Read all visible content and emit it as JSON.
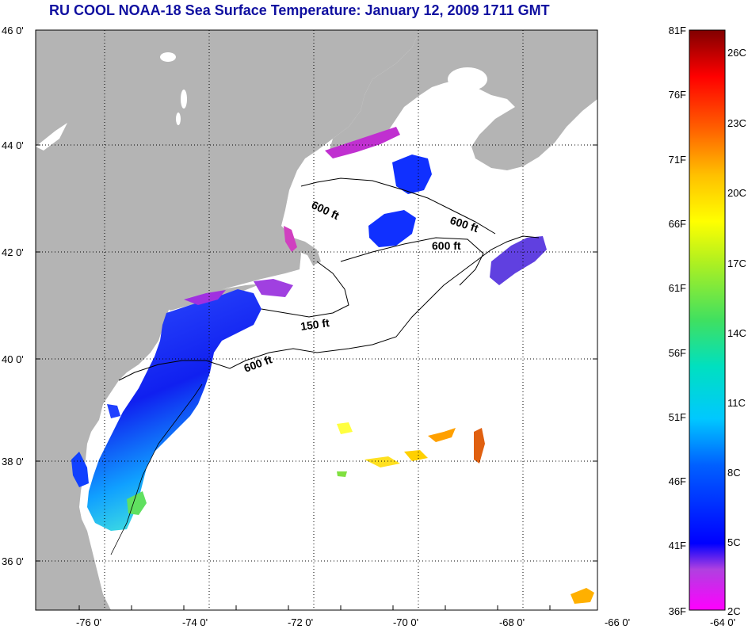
{
  "title": "RU COOL  NOAA-18  Sea Surface Temperature:  January 12, 2009 1711 GMT",
  "colors": {
    "land": "#b4b4b4",
    "water": "#ffffff",
    "frame": "#000000",
    "title": "#1010a0"
  },
  "map": {
    "lat_labels": [
      "46 0'",
      "44 0'",
      "42 0'",
      "40 0'",
      "38 0'",
      "36 0'"
    ],
    "lon_labels": [
      "-76 0'",
      "-74 0'",
      "-72 0'",
      "-70 0'",
      "-68 0'",
      "-66 0'",
      "-64 0'"
    ],
    "contour_labels": [
      "600 ft",
      "600 ft",
      "600 ft",
      "150 ft",
      "600 ft"
    ]
  },
  "colorbar": {
    "fahrenheit_labels": [
      "81F",
      "76F",
      "71F",
      "66F",
      "61F",
      "56F",
      "51F",
      "46F",
      "41F",
      "36F"
    ],
    "celsius_labels": [
      "26C",
      "23C",
      "20C",
      "17C",
      "14C",
      "11C",
      "8C",
      "5C",
      "2C"
    ]
  }
}
